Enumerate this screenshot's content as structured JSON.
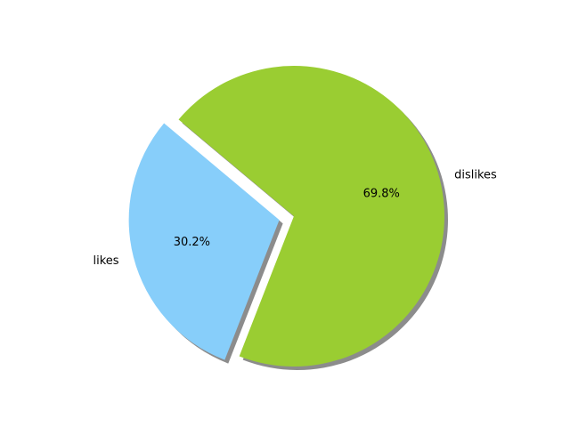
{
  "chart_data": {
    "type": "pie",
    "title": "",
    "labels": [
      "likes",
      "dislikes"
    ],
    "values": [
      30.2,
      69.8
    ],
    "percent_labels": [
      "30.2%",
      "69.8%"
    ],
    "colors": [
      "#87CEFA",
      "#9ACD32"
    ],
    "explode": [
      0.1,
      0
    ],
    "start_angle": 140,
    "shadow": true,
    "legend": "none"
  }
}
